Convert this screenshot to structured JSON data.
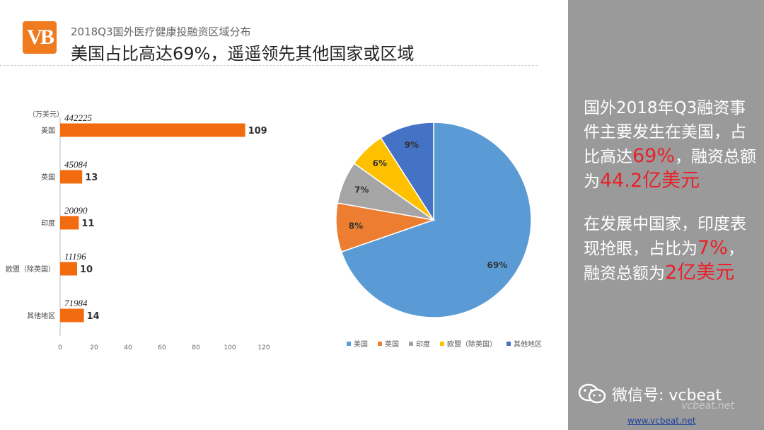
{
  "header": {
    "logo_text": "VB",
    "subtitle": "2018Q3国外医疗健康投融资区域分布",
    "title": "美国占比高达69%，遥遥领先其他国家或区域"
  },
  "chart_data": [
    {
      "type": "bar",
      "orientation": "horizontal",
      "unit_label": "（万美元）",
      "categories": [
        "美国",
        "英国",
        "印度",
        "欧盟（除英国）",
        "其他地区"
      ],
      "values": [
        109,
        13,
        11,
        10,
        14
      ],
      "amounts": [
        "442225",
        "45084",
        "20090",
        "11196",
        "71984"
      ],
      "xlim": [
        0,
        120
      ],
      "xticks": [
        "0",
        "20",
        "40",
        "60",
        "80",
        "100",
        "120"
      ],
      "bar_color": "#f26b0f",
      "grid": false
    },
    {
      "type": "pie",
      "labels": [
        "美国",
        "英国",
        "印度",
        "欧盟（除英国）",
        "其他地区"
      ],
      "values": [
        69,
        8,
        7,
        6,
        9
      ],
      "value_labels": [
        "69%",
        "8%",
        "7%",
        "6%",
        "9%"
      ],
      "colors": [
        "#5b9bd5",
        "#ed7d31",
        "#a5a5a5",
        "#ffc000",
        "#4472c4"
      ],
      "legend_position": "bottom"
    }
  ],
  "side": {
    "p1_a": "国外2018年Q3融资事件主要发生在美国，占比高达",
    "p1_hl1": "69%",
    "p1_b": "，融资总额为",
    "p1_hl2": "44.2亿美元",
    "p2_a": "在发展中国家，印度表现抢眼，占比为",
    "p2_hl1": "7%",
    "p2_b": "，融资总额为",
    "p2_hl2": "2亿美元"
  },
  "footer": {
    "wechat": "微信号: vcbeat",
    "watermark": "vcbeat.net",
    "url": "www.vcbeat.net"
  }
}
